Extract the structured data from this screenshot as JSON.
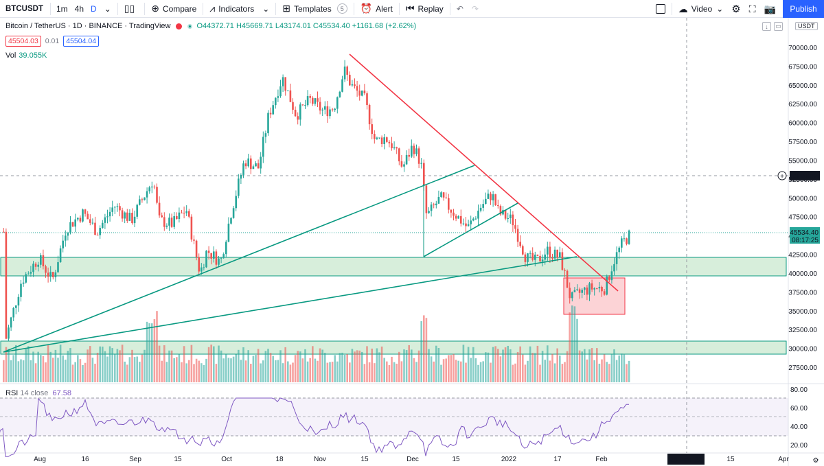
{
  "toolbar": {
    "symbol": "BTCUSDT",
    "intervals": [
      "1m",
      "4h",
      "D"
    ],
    "active_interval": "D",
    "compare": "Compare",
    "indicators": "Indicators",
    "templates": "Templates",
    "templates_count": "5",
    "alert": "Alert",
    "replay": "Replay",
    "video": "Video",
    "publish": "Publish"
  },
  "legend": {
    "title": "Bitcoin / TetherUS · 1D · BINANCE · TradingView",
    "ohlc": "O44372.71 H45669.71 L43174.01 C45534.40 +1161.68 (+2.62%)",
    "sell_price": "45504.03",
    "spread": "0.01",
    "buy_price": "45504.04",
    "vol_label": "Vol",
    "vol_value": "39.055K",
    "rsi_label": "RSI",
    "rsi_params": "14 close",
    "rsi_value": "67.58",
    "currency": "USDT"
  },
  "price_axis": {
    "ticks": [
      "70000.00",
      "67500.00",
      "65000.00",
      "62500.00",
      "60000.00",
      "57500.00",
      "55000.00",
      "52500.00",
      "50000.00",
      "47500.00",
      "45000.00",
      "42500.00",
      "40000.00",
      "37500.00",
      "35000.00",
      "32500.00",
      "30000.00",
      "27500.00"
    ],
    "crosshair_price": "53046.68",
    "last_price": "45534.40",
    "countdown": "08:17:25"
  },
  "rsi_axis": {
    "ticks": [
      "80.00",
      "60.00",
      "40.00",
      "20.00"
    ]
  },
  "time_axis": {
    "ticks": [
      "Aug",
      "16",
      "Sep",
      "15",
      "Oct",
      "18",
      "Nov",
      "15",
      "Dec",
      "15",
      "2022",
      "17",
      "Feb",
      "15",
      "Apr"
    ],
    "crosshair_date": "28 Feb '22"
  },
  "colors": {
    "up": "#26a69a",
    "down": "#ef5350",
    "trendline_red": "#f23645",
    "trendline_green": "#089981",
    "zone_fill": "#d5ecd8",
    "zone_border": "#089981",
    "rsi": "#7e57c2",
    "accent": "#2962ff"
  },
  "icons": [
    "candles-icon",
    "compare-plus-icon",
    "indicators-icon",
    "templates-icon",
    "alert-icon",
    "replay-icon",
    "undo-icon",
    "redo-icon",
    "layout-icon",
    "video-cloud-icon",
    "settings-icon",
    "fullscreen-icon",
    "camera-icon"
  ]
}
